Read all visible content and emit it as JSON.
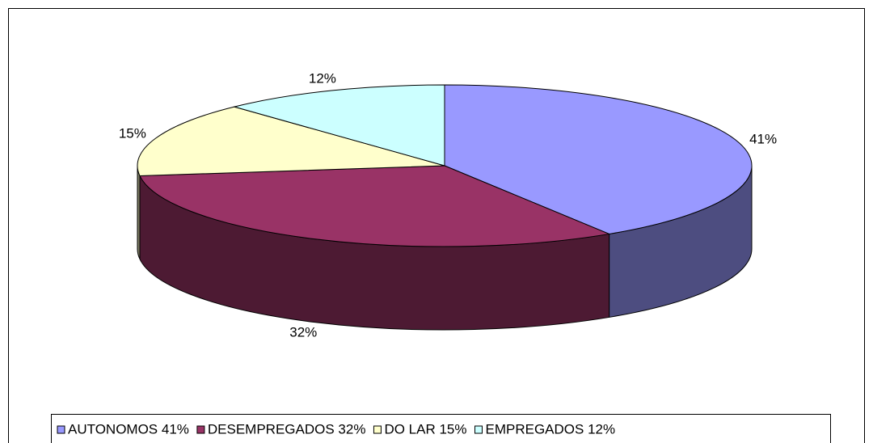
{
  "chart_data": {
    "type": "pie3d",
    "categories": [
      "AUTONOMOS 41%",
      "DESEMPREGADOS 32%",
      "DO LAR 15%",
      "EMPREGADOS 12%"
    ],
    "values": [
      41,
      32,
      15,
      12
    ],
    "value_labels": [
      "41%",
      "32%",
      "15%",
      "12%"
    ],
    "colors": [
      "#9999ff",
      "#993366",
      "#ffffcc",
      "#ccffff"
    ],
    "legend": "bottom"
  }
}
